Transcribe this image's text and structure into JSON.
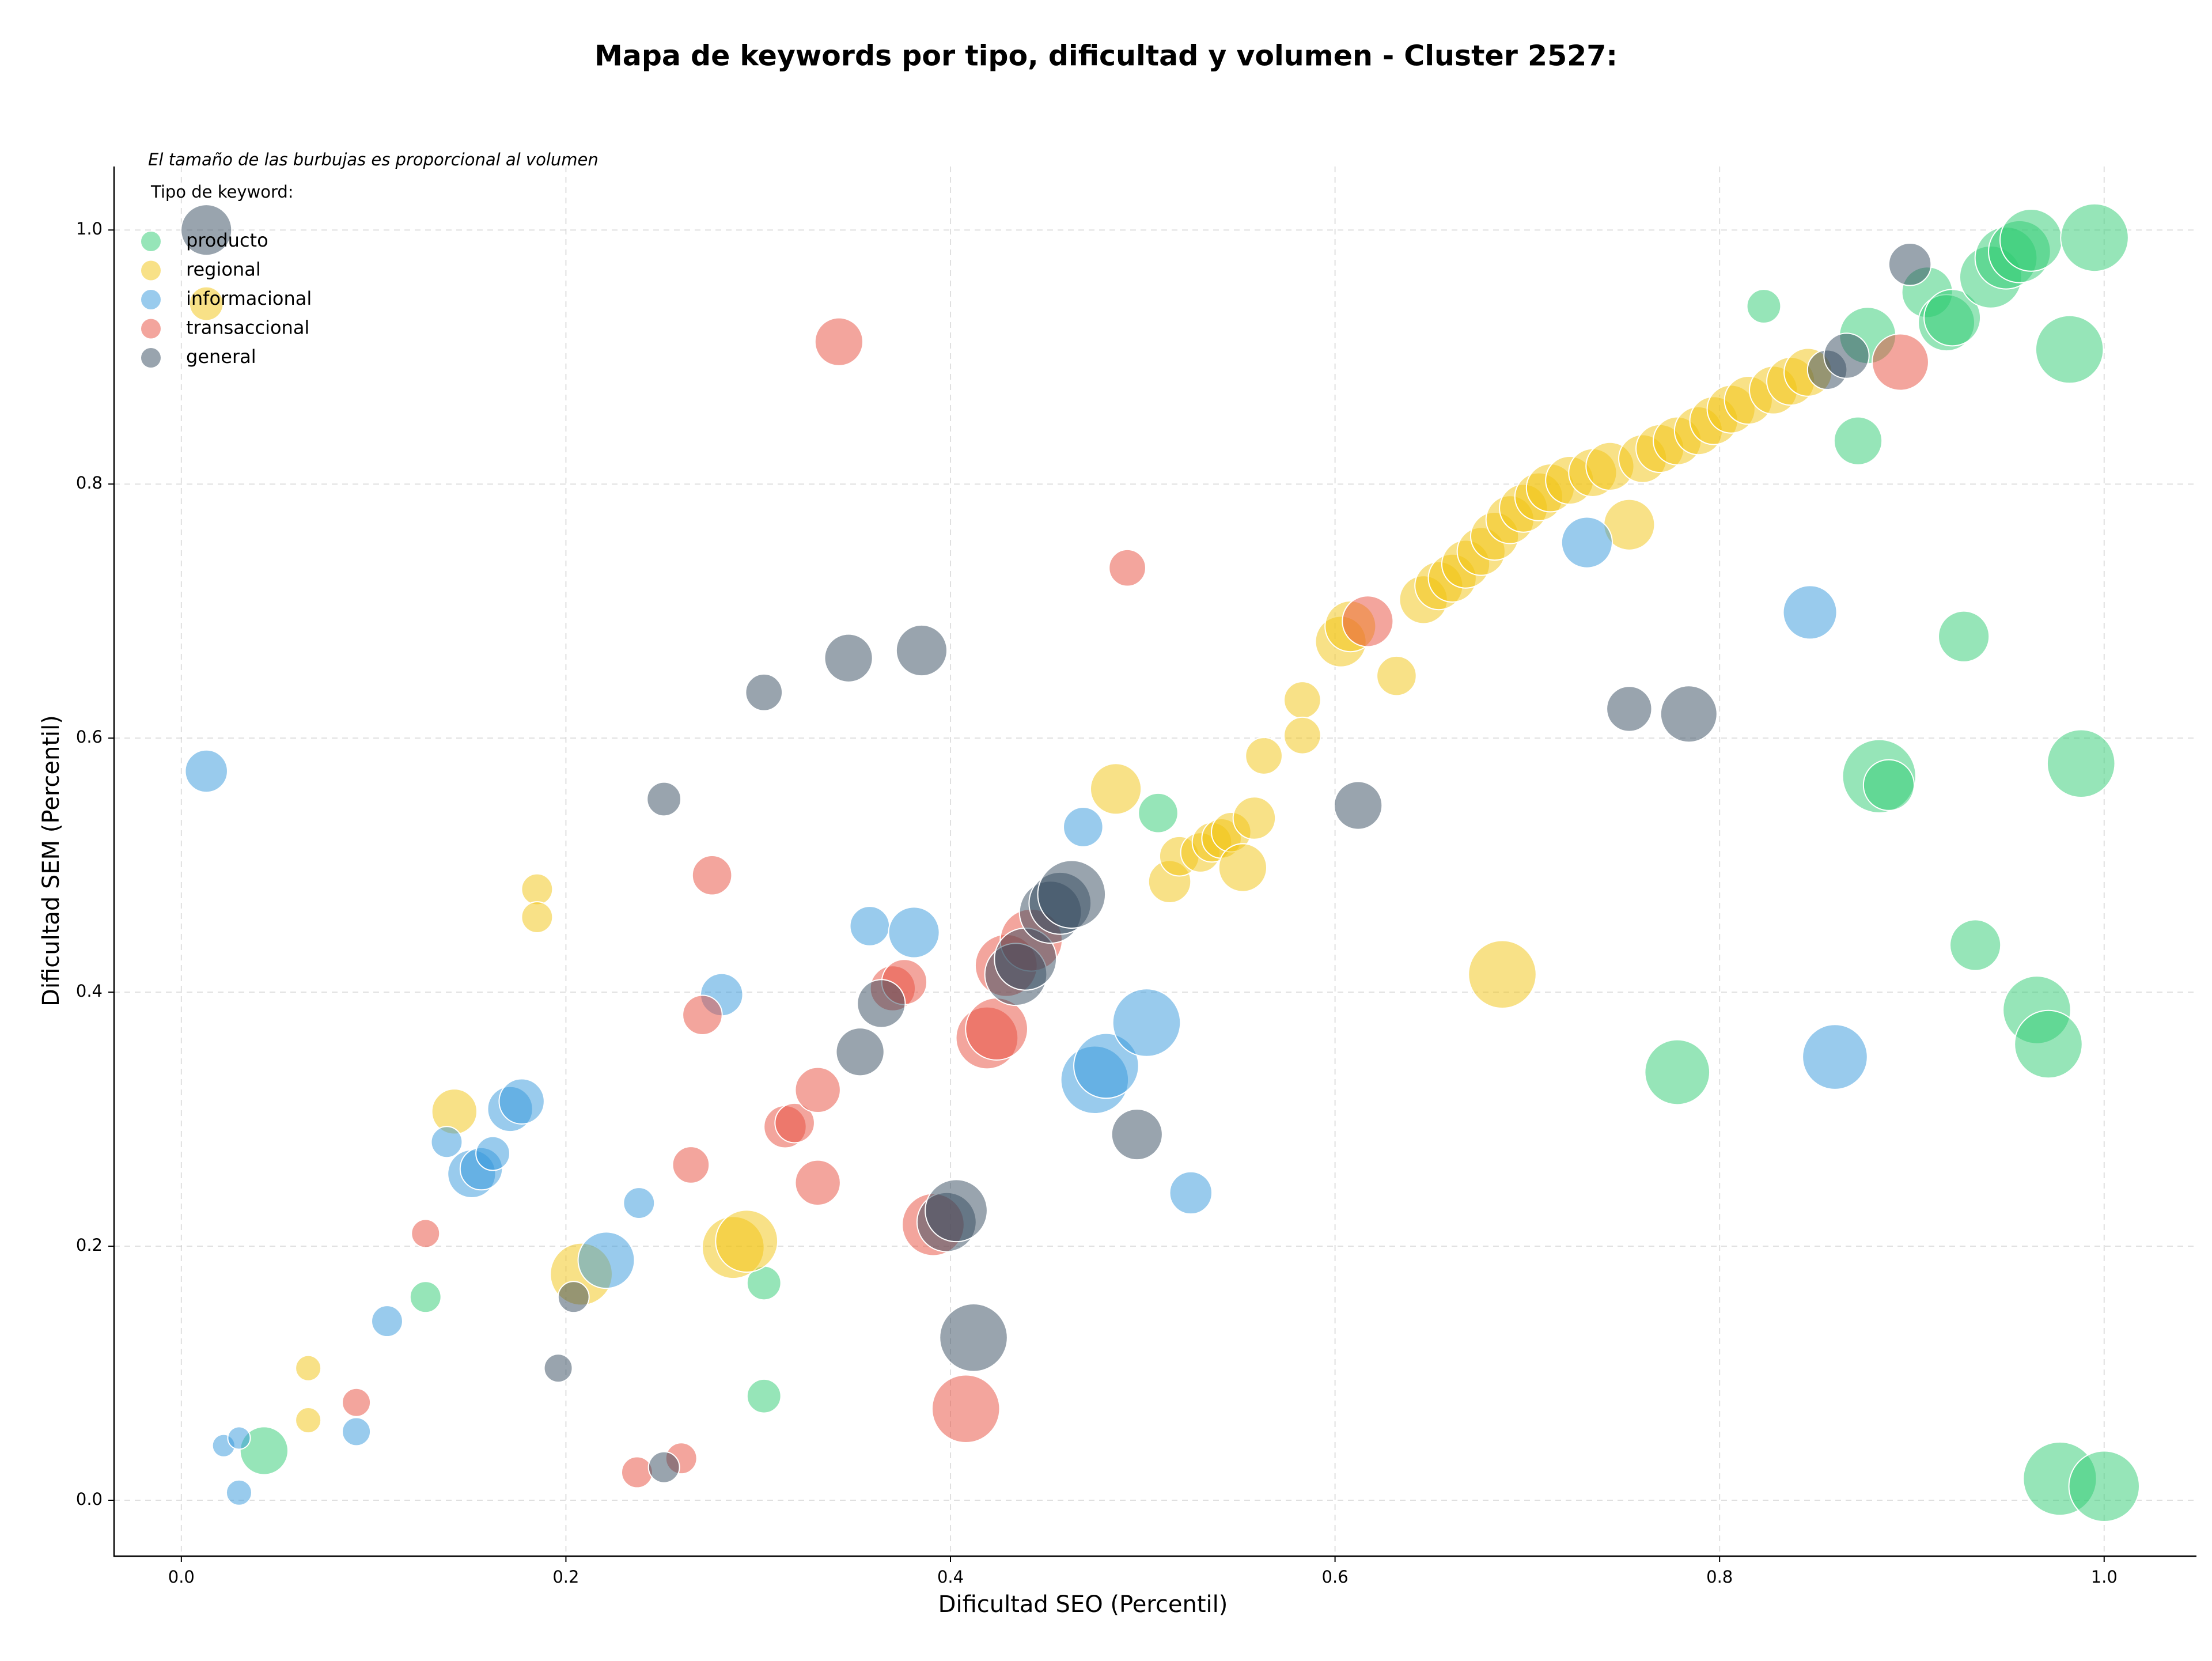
{
  "chart_data": {
    "type": "scatter",
    "title": "Mapa de keywords por tipo, dificultad y volumen - Cluster 2527:",
    "xlabel": "Dificultad SEO (Percentil)",
    "ylabel": "Dificultad SEM (Percentil)",
    "note": "El tamaño de las burbujas es proporcional al volumen",
    "legend_title": "Tipo de keyword:",
    "legend": "upper left",
    "grid": true,
    "xlim": [
      -0.035,
      1.048
    ],
    "ylim": [
      -0.044,
      1.05
    ],
    "xticks": [
      {
        "value": 0,
        "label": "0.0"
      },
      0.2,
      0.4,
      0.6,
      0.8,
      {
        "value": 1,
        "label": "1.0"
      }
    ],
    "yticks": [
      {
        "value": 0,
        "label": "0.0"
      },
      0.2,
      0.4,
      0.6,
      0.8,
      {
        "value": 1,
        "label": "1.0"
      }
    ],
    "series": [
      {
        "name": "producto",
        "color": "#2ecc71",
        "x": [
          0.043,
          0.127,
          0.303,
          0.303,
          0.508,
          0.778,
          0.823,
          0.872,
          0.877,
          0.883,
          0.888,
          0.908,
          0.918,
          0.921,
          0.927,
          0.933,
          0.941,
          0.949,
          0.956,
          0.962,
          0.965,
          0.971,
          0.977,
          0.982,
          0.988,
          0.995,
          1.0
        ],
        "y": [
          0.039,
          0.16,
          0.171,
          0.082,
          0.541,
          0.337,
          0.94,
          0.834,
          0.917,
          0.57,
          0.563,
          0.951,
          0.927,
          0.931,
          0.68,
          0.437,
          0.963,
          0.978,
          0.983,
          0.992,
          0.386,
          0.359,
          0.017,
          0.906,
          0.58,
          0.994,
          0.011
        ],
        "sizes": [
          289,
          121,
          144,
          144,
          196,
          529,
          144,
          289,
          400,
          676,
          324,
          324,
          400,
          400,
          324,
          324,
          484,
          484,
          484,
          484,
          576,
          576,
          676,
          576,
          576,
          576,
          625
        ]
      },
      {
        "name": "regional",
        "color": "#f1c40f",
        "x": [
          0.013,
          0.066,
          0.066,
          0.142,
          0.185,
          0.185,
          0.208,
          0.287,
          0.294,
          0.486,
          0.514,
          0.519,
          0.53,
          0.536,
          0.541,
          0.546,
          0.552,
          0.558,
          0.563,
          0.583,
          0.583,
          0.603,
          0.608,
          0.632,
          0.646,
          0.654,
          0.661,
          0.668,
          0.676,
          0.683,
          0.691,
          0.687,
          0.698,
          0.706,
          0.712,
          0.722,
          0.734,
          0.743,
          0.753,
          0.76,
          0.769,
          0.778,
          0.789,
          0.797,
          0.806,
          0.815,
          0.828,
          0.837,
          0.846
        ],
        "y": [
          0.942,
          0.104,
          0.063,
          0.306,
          0.481,
          0.459,
          0.178,
          0.199,
          0.204,
          0.56,
          0.487,
          0.507,
          0.51,
          0.518,
          0.521,
          0.526,
          0.498,
          0.537,
          0.586,
          0.63,
          0.602,
          0.676,
          0.688,
          0.649,
          0.709,
          0.72,
          0.726,
          0.737,
          0.747,
          0.759,
          0.772,
          0.414,
          0.781,
          0.79,
          0.797,
          0.803,
          0.809,
          0.814,
          0.768,
          0.82,
          0.828,
          0.834,
          0.842,
          0.85,
          0.859,
          0.866,
          0.874,
          0.881,
          0.888
        ],
        "sizes": [
          144,
          81,
          81,
          256,
          121,
          121,
          484,
          484,
          484,
          324,
          225,
          196,
          196,
          196,
          196,
          196,
          289,
          225,
          169,
          169,
          169,
          324,
          324,
          196,
          289,
          289,
          289,
          289,
          289,
          289,
          289,
          576,
          289,
          289,
          289,
          289,
          289,
          289,
          324,
          289,
          289,
          289,
          289,
          289,
          289,
          289,
          289,
          289,
          289
        ]
      },
      {
        "name": "informacional",
        "color": "#3498db",
        "x": [
          0.013,
          0.022,
          0.03,
          0.03,
          0.091,
          0.107,
          0.138,
          0.151,
          0.156,
          0.162,
          0.171,
          0.177,
          0.221,
          0.238,
          0.281,
          0.358,
          0.381,
          0.469,
          0.475,
          0.481,
          0.502,
          0.525,
          0.731,
          0.847,
          0.86
        ],
        "y": [
          0.574,
          0.043,
          0.049,
          0.006,
          0.054,
          0.141,
          0.282,
          0.257,
          0.261,
          0.273,
          0.308,
          0.314,
          0.189,
          0.234,
          0.398,
          0.452,
          0.447,
          0.53,
          0.331,
          0.342,
          0.376,
          0.242,
          0.754,
          0.699,
          0.349
        ],
        "sizes": [
          225,
          64,
          64,
          81,
          100,
          121,
          121,
          289,
          225,
          144,
          256,
          256,
          400,
          121,
          225,
          196,
          324,
          196,
          576,
          529,
          576,
          225,
          324,
          361,
          529
        ]
      },
      {
        "name": "transaccional",
        "color": "#e74c3c",
        "x": [
          0.091,
          0.127,
          0.237,
          0.26,
          0.265,
          0.271,
          0.276,
          0.314,
          0.319,
          0.331,
          0.331,
          0.342,
          0.37,
          0.376,
          0.391,
          0.408,
          0.419,
          0.424,
          0.429,
          0.442,
          0.492,
          0.617,
          0.894
        ],
        "y": [
          0.077,
          0.21,
          0.022,
          0.033,
          0.264,
          0.382,
          0.492,
          0.294,
          0.297,
          0.323,
          0.25,
          0.912,
          0.403,
          0.408,
          0.217,
          0.072,
          0.364,
          0.371,
          0.421,
          0.441,
          0.734,
          0.692,
          0.896
        ],
        "sizes": [
          100,
          100,
          121,
          121,
          169,
          196,
          196,
          225,
          196,
          256,
          256,
          289,
          256,
          256,
          484,
          576,
          484,
          484,
          484,
          484,
          169,
          324,
          400
        ]
      },
      {
        "name": "general",
        "color": "#34495e",
        "x": [
          0.013,
          0.196,
          0.204,
          0.251,
          0.251,
          0.303,
          0.347,
          0.353,
          0.364,
          0.385,
          0.398,
          0.403,
          0.412,
          0.434,
          0.439,
          0.452,
          0.457,
          0.463,
          0.497,
          0.612,
          0.753,
          0.784,
          0.856,
          0.866,
          0.899
        ],
        "y": [
          1.0,
          0.104,
          0.16,
          0.552,
          0.026,
          0.636,
          0.663,
          0.353,
          0.391,
          0.669,
          0.219,
          0.228,
          0.128,
          0.414,
          0.426,
          0.463,
          0.47,
          0.477,
          0.288,
          0.547,
          0.623,
          0.619,
          0.89,
          0.901,
          0.973
        ],
        "sizes": [
          324,
          100,
          121,
          144,
          121,
          169,
          289,
          289,
          289,
          324,
          441,
          484,
          576,
          484,
          484,
          484,
          484,
          576,
          324,
          289,
          256,
          400,
          196,
          256,
          225
        ]
      }
    ]
  }
}
